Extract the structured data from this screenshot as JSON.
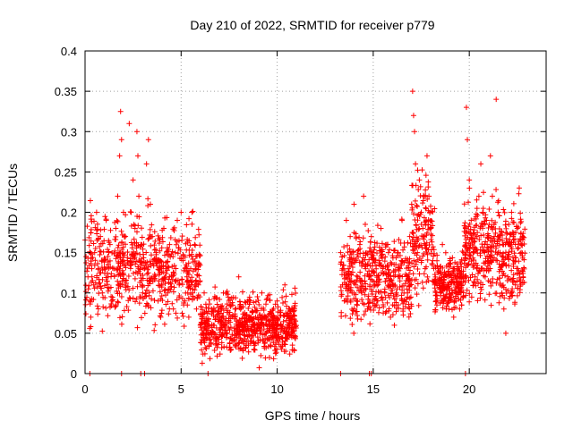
{
  "chart_data": {
    "type": "scatter",
    "title": "Day 210 of 2022, SRMTID for receiver p779",
    "xlabel": "GPS time / hours",
    "ylabel": "SRMTID / TECUs",
    "xlim": [
      0,
      24
    ],
    "ylim": [
      0,
      0.4
    ],
    "x_ticks": [
      0,
      5,
      10,
      15,
      20
    ],
    "x_tick_labels": [
      "0",
      "5",
      "10",
      "15",
      "20"
    ],
    "y_ticks": [
      0,
      0.05,
      0.1,
      0.15,
      0.2,
      0.25,
      0.3,
      0.35,
      0.4
    ],
    "y_tick_labels": [
      "0",
      "0.05",
      "0.1",
      "0.15",
      "0.2",
      "0.25",
      "0.3",
      "0.35",
      "0.4"
    ],
    "grid": true,
    "marker": "+",
    "color": "#ff0000",
    "series": [
      {
        "name": "SRMTID",
        "points": [
          [
            0.05,
            0.145
          ],
          [
            0.15,
            0.12
          ],
          [
            0.25,
            0.09
          ],
          [
            0.3,
            0.07
          ],
          [
            0.35,
            0.13
          ],
          [
            0.45,
            0.11
          ],
          [
            0.5,
            0.15
          ],
          [
            0.6,
            0.2
          ],
          [
            0.7,
            0.13
          ],
          [
            0.8,
            0.17
          ],
          [
            0.9,
            0.1
          ],
          [
            1.0,
            0.14
          ],
          [
            1.1,
            0.19
          ],
          [
            1.2,
            0.12
          ],
          [
            1.3,
            0.16
          ],
          [
            1.4,
            0.09
          ],
          [
            1.5,
            0.13
          ],
          [
            1.6,
            0.18
          ],
          [
            1.7,
            0.22
          ],
          [
            1.8,
            0.27
          ],
          [
            1.85,
            0.325
          ],
          [
            1.9,
            0.29
          ],
          [
            2.0,
            0.2
          ],
          [
            2.1,
            0.17
          ],
          [
            2.2,
            0.14
          ],
          [
            2.3,
            0.31
          ],
          [
            2.4,
            0.2
          ],
          [
            2.5,
            0.24
          ],
          [
            2.6,
            0.18
          ],
          [
            2.7,
            0.3
          ],
          [
            2.75,
            0.27
          ],
          [
            2.8,
            0.22
          ],
          [
            2.9,
            0.16
          ],
          [
            3.0,
            0.1
          ],
          [
            3.1,
            0.13
          ],
          [
            3.2,
            0.26
          ],
          [
            3.3,
            0.29
          ],
          [
            3.4,
            0.21
          ],
          [
            3.5,
            0.17
          ],
          [
            3.6,
            0.12
          ],
          [
            3.7,
            0.15
          ],
          [
            3.8,
            0.09
          ],
          [
            3.9,
            0.14
          ],
          [
            4.0,
            0.11
          ],
          [
            4.1,
            0.18
          ],
          [
            4.2,
            0.13
          ],
          [
            4.3,
            0.1
          ],
          [
            4.4,
            0.16
          ],
          [
            4.5,
            0.12
          ],
          [
            4.6,
            0.08
          ],
          [
            4.7,
            0.15
          ],
          [
            4.8,
            0.19
          ],
          [
            4.9,
            0.11
          ],
          [
            5.0,
            0.2
          ],
          [
            5.1,
            0.14
          ],
          [
            5.2,
            0.09
          ],
          [
            5.3,
            0.12
          ],
          [
            5.4,
            0.07
          ],
          [
            5.5,
            0.13
          ],
          [
            5.6,
            0.1
          ],
          [
            5.7,
            0.16
          ],
          [
            5.8,
            0.08
          ],
          [
            5.9,
            0.11
          ],
          [
            6.0,
            0.06
          ],
          [
            6.2,
            0.1
          ],
          [
            6.4,
            0.05
          ],
          [
            6.6,
            0.08
          ],
          [
            6.8,
            0.04
          ],
          [
            7.0,
            0.07
          ],
          [
            7.2,
            0.1
          ],
          [
            7.4,
            0.05
          ],
          [
            7.6,
            0.03
          ],
          [
            7.8,
            0.07
          ],
          [
            8.0,
            0.12
          ],
          [
            8.2,
            0.06
          ],
          [
            8.4,
            0.04
          ],
          [
            8.6,
            0.09
          ],
          [
            8.8,
            0.03
          ],
          [
            9.0,
            0.06
          ],
          [
            9.2,
            0.1
          ],
          [
            9.4,
            0.05
          ],
          [
            9.6,
            0.02
          ],
          [
            9.8,
            0.07
          ],
          [
            10.0,
            0.09
          ],
          [
            10.2,
            0.06
          ],
          [
            10.4,
            0.11
          ],
          [
            10.6,
            0.08
          ],
          [
            10.8,
            0.07
          ],
          [
            10.9,
            0.08
          ],
          [
            13.3,
            0.15
          ],
          [
            13.4,
            0.11
          ],
          [
            13.5,
            0.09
          ],
          [
            13.6,
            0.19
          ],
          [
            13.7,
            0.13
          ],
          [
            13.8,
            0.17
          ],
          [
            13.9,
            0.1
          ],
          [
            14.0,
            0.21
          ],
          [
            14.1,
            0.14
          ],
          [
            14.2,
            0.12
          ],
          [
            14.3,
            0.16
          ],
          [
            14.4,
            0.1
          ],
          [
            14.5,
            0.22
          ],
          [
            14.6,
            0.13
          ],
          [
            14.7,
            0.08
          ],
          [
            14.8,
            0.12
          ],
          [
            14.9,
            0.17
          ],
          [
            15.0,
            0.15
          ],
          [
            15.1,
            0.11
          ],
          [
            15.2,
            0.09
          ],
          [
            15.3,
            0.14
          ],
          [
            15.4,
            0.18
          ],
          [
            15.5,
            0.13
          ],
          [
            15.6,
            0.1
          ],
          [
            15.7,
            0.16
          ],
          [
            15.8,
            0.12
          ],
          [
            15.9,
            0.07
          ],
          [
            16.0,
            0.11
          ],
          [
            16.1,
            0.06
          ],
          [
            16.2,
            0.1
          ],
          [
            16.3,
            0.15
          ],
          [
            16.4,
            0.13
          ],
          [
            16.5,
            0.19
          ],
          [
            16.6,
            0.09
          ],
          [
            16.7,
            0.14
          ],
          [
            16.8,
            0.12
          ],
          [
            16.9,
            0.17
          ],
          [
            17.0,
            0.21
          ],
          [
            17.05,
            0.35
          ],
          [
            17.1,
            0.32
          ],
          [
            17.15,
            0.3
          ],
          [
            17.2,
            0.26
          ],
          [
            17.3,
            0.15
          ],
          [
            17.4,
            0.24
          ],
          [
            17.5,
            0.2
          ],
          [
            17.6,
            0.17
          ],
          [
            17.7,
            0.13
          ],
          [
            17.8,
            0.27
          ],
          [
            17.9,
            0.22
          ],
          [
            18.0,
            0.18
          ],
          [
            18.1,
            0.14
          ],
          [
            18.2,
            0.11
          ],
          [
            18.3,
            0.09
          ],
          [
            18.4,
            0.13
          ],
          [
            18.5,
            0.1
          ],
          [
            18.6,
            0.16
          ],
          [
            18.7,
            0.12
          ],
          [
            18.8,
            0.08
          ],
          [
            18.9,
            0.11
          ],
          [
            19.0,
            0.14
          ],
          [
            19.1,
            0.1
          ],
          [
            19.2,
            0.13
          ],
          [
            19.3,
            0.09
          ],
          [
            19.4,
            0.12
          ],
          [
            19.5,
            0.08
          ],
          [
            19.6,
            0.11
          ],
          [
            19.7,
            0.15
          ],
          [
            19.8,
            0.18
          ],
          [
            19.85,
            0.33
          ],
          [
            19.9,
            0.29
          ],
          [
            20.0,
            0.24
          ],
          [
            20.1,
            0.19
          ],
          [
            20.2,
            0.15
          ],
          [
            20.3,
            0.12
          ],
          [
            20.4,
            0.17
          ],
          [
            20.5,
            0.22
          ],
          [
            20.6,
            0.26
          ],
          [
            20.7,
            0.2
          ],
          [
            20.8,
            0.16
          ],
          [
            20.9,
            0.19
          ],
          [
            21.0,
            0.14
          ],
          [
            21.1,
            0.27
          ],
          [
            21.2,
            0.22
          ],
          [
            21.3,
            0.17
          ],
          [
            21.4,
            0.34
          ],
          [
            21.5,
            0.2
          ],
          [
            21.6,
            0.15
          ],
          [
            21.7,
            0.1
          ],
          [
            21.8,
            0.08
          ],
          [
            21.9,
            0.05
          ],
          [
            22.0,
            0.12
          ],
          [
            22.1,
            0.16
          ],
          [
            22.2,
            0.2
          ],
          [
            22.3,
            0.14
          ],
          [
            22.4,
            0.11
          ],
          [
            22.5,
            0.18
          ],
          [
            22.6,
            0.23
          ],
          [
            22.7,
            0.15
          ],
          [
            22.8,
            0.12
          ]
        ],
        "clusters": [
          {
            "x_from": 0.0,
            "x_to": 6.0,
            "y_center": 0.13,
            "y_spread": 0.05,
            "count": 620
          },
          {
            "x_from": 6.0,
            "x_to": 11.0,
            "y_center": 0.06,
            "y_spread": 0.03,
            "count": 700
          },
          {
            "x_from": 13.3,
            "x_to": 17.0,
            "y_center": 0.12,
            "y_spread": 0.045,
            "count": 430
          },
          {
            "x_from": 17.0,
            "x_to": 18.2,
            "y_center": 0.17,
            "y_spread": 0.06,
            "count": 150
          },
          {
            "x_from": 18.2,
            "x_to": 19.7,
            "y_center": 0.11,
            "y_spread": 0.025,
            "count": 220
          },
          {
            "x_from": 19.7,
            "x_to": 22.9,
            "y_center": 0.15,
            "y_spread": 0.05,
            "count": 420
          }
        ],
        "baseline_x": [
          0.25,
          1.9,
          2.9,
          3.1,
          6.4,
          13.3,
          14.8,
          14.9,
          19.8
        ]
      }
    ]
  }
}
